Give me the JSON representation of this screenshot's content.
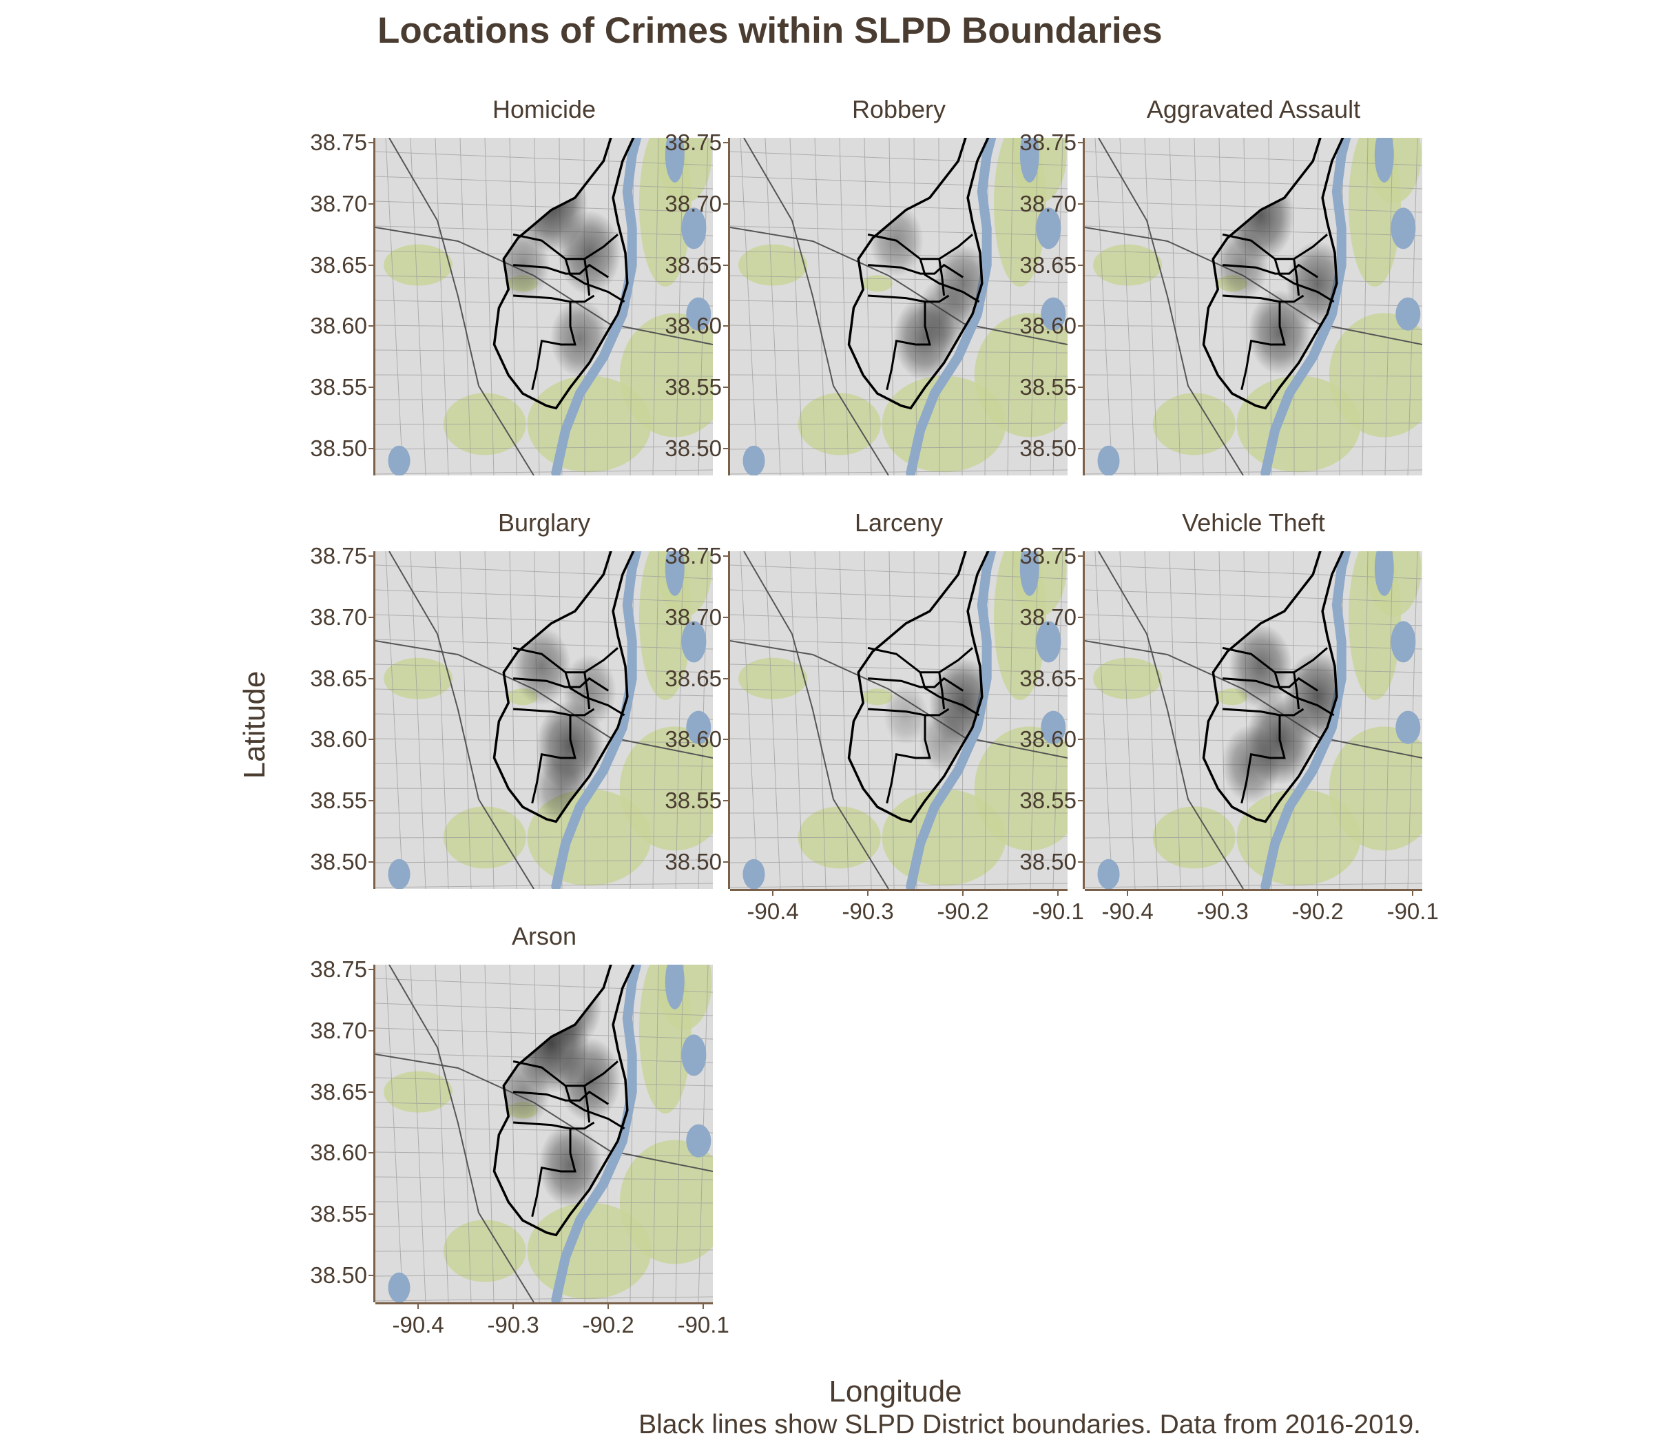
{
  "title": "Locations of Crimes within SLPD Boundaries",
  "caption": "Black lines show SLPD District boundaries. Data from 2016-2019.",
  "x_axis_title": "Longitude",
  "y_axis_title": "Latitude",
  "y_ticks": [
    "38.75",
    "38.70",
    "38.65",
    "38.60",
    "38.55",
    "38.50"
  ],
  "x_ticks": [
    "-90.4",
    "-90.3",
    "-90.2",
    "-90.1"
  ],
  "colors": {
    "text": "#4a3c30",
    "axis": "#7a6048",
    "boundary": "#000000",
    "density": "#333333",
    "water": "#8fa9c8",
    "park": "#c9d59a",
    "land": "#dcdcdc"
  },
  "panels": [
    {
      "label": "Homicide",
      "hotspots": [
        [
          -90.26,
          38.7,
          0.9
        ],
        [
          -90.22,
          38.66,
          0.7
        ],
        [
          -90.23,
          38.59,
          0.6
        ],
        [
          -90.29,
          38.65,
          0.5
        ]
      ]
    },
    {
      "label": "Robbery",
      "hotspots": [
        [
          -90.27,
          38.67,
          0.5
        ],
        [
          -90.2,
          38.635,
          0.6
        ],
        [
          -90.24,
          38.59,
          0.7
        ],
        [
          -90.22,
          38.61,
          0.5
        ]
      ]
    },
    {
      "label": "Aggravated Assault",
      "hotspots": [
        [
          -90.26,
          38.69,
          0.8
        ],
        [
          -90.2,
          38.635,
          0.7
        ],
        [
          -90.24,
          38.595,
          0.7
        ],
        [
          -90.28,
          38.65,
          0.5
        ]
      ]
    },
    {
      "label": "Burglary",
      "hotspots": [
        [
          -90.27,
          38.66,
          0.6
        ],
        [
          -90.22,
          38.64,
          0.5
        ],
        [
          -90.24,
          38.595,
          0.8
        ],
        [
          -90.25,
          38.56,
          0.5
        ]
      ]
    },
    {
      "label": "Larceny",
      "hotspots": [
        [
          -90.2,
          38.63,
          0.8
        ],
        [
          -90.26,
          38.62,
          0.3
        ],
        [
          -90.22,
          38.6,
          0.4
        ]
      ]
    },
    {
      "label": "Vehicle Theft",
      "hotspots": [
        [
          -90.26,
          38.66,
          0.7
        ],
        [
          -90.2,
          38.635,
          0.8
        ],
        [
          -90.24,
          38.6,
          0.8
        ],
        [
          -90.27,
          38.58,
          0.6
        ]
      ]
    },
    {
      "label": "Arson",
      "hotspots": [
        [
          -90.26,
          38.69,
          0.95
        ],
        [
          -90.24,
          38.72,
          0.7
        ],
        [
          -90.22,
          38.66,
          0.7
        ],
        [
          -90.24,
          38.59,
          0.7
        ],
        [
          -90.29,
          38.65,
          0.5
        ]
      ]
    }
  ]
}
